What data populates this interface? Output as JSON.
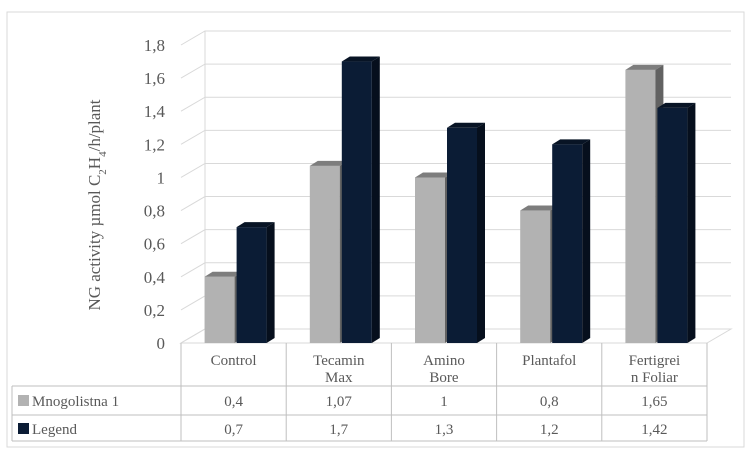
{
  "chart_data": {
    "type": "bar",
    "categories": [
      {
        "line1": "Control",
        "line2": ""
      },
      {
        "line1": "Tecamin",
        "line2": "Max"
      },
      {
        "line1": "Amino",
        "line2": "Bore"
      },
      {
        "line1": "Plantafol",
        "line2": ""
      },
      {
        "line1": "Fertigrei",
        "line2": "n Foliar"
      }
    ],
    "ylabel": {
      "pre": "NG activity µmol C",
      "s1": "2",
      "mid": "H",
      "s2": "4",
      "post": "/h/plant"
    },
    "yticks": [
      "0",
      "0,2",
      "0,4",
      "0,6",
      "0,8",
      "1",
      "1,2",
      "1,4",
      "1,6",
      "1,8"
    ],
    "ylim": [
      0,
      1.8
    ],
    "grid": true,
    "legend_placement": "data table below chart",
    "series": [
      {
        "name": "Mnogolistna 1",
        "color": "#b2b2b2",
        "values": [
          0.4,
          1.07,
          1,
          0.8,
          1.65
        ],
        "labels": [
          "0,4",
          "1,07",
          "1",
          "0,8",
          "1,65"
        ]
      },
      {
        "name": "Legend",
        "color": "#0b1c35",
        "values": [
          0.7,
          1.7,
          1.3,
          1.2,
          1.42
        ],
        "labels": [
          "0,7",
          "1,7",
          "1,3",
          "1,2",
          "1,42"
        ]
      }
    ]
  }
}
